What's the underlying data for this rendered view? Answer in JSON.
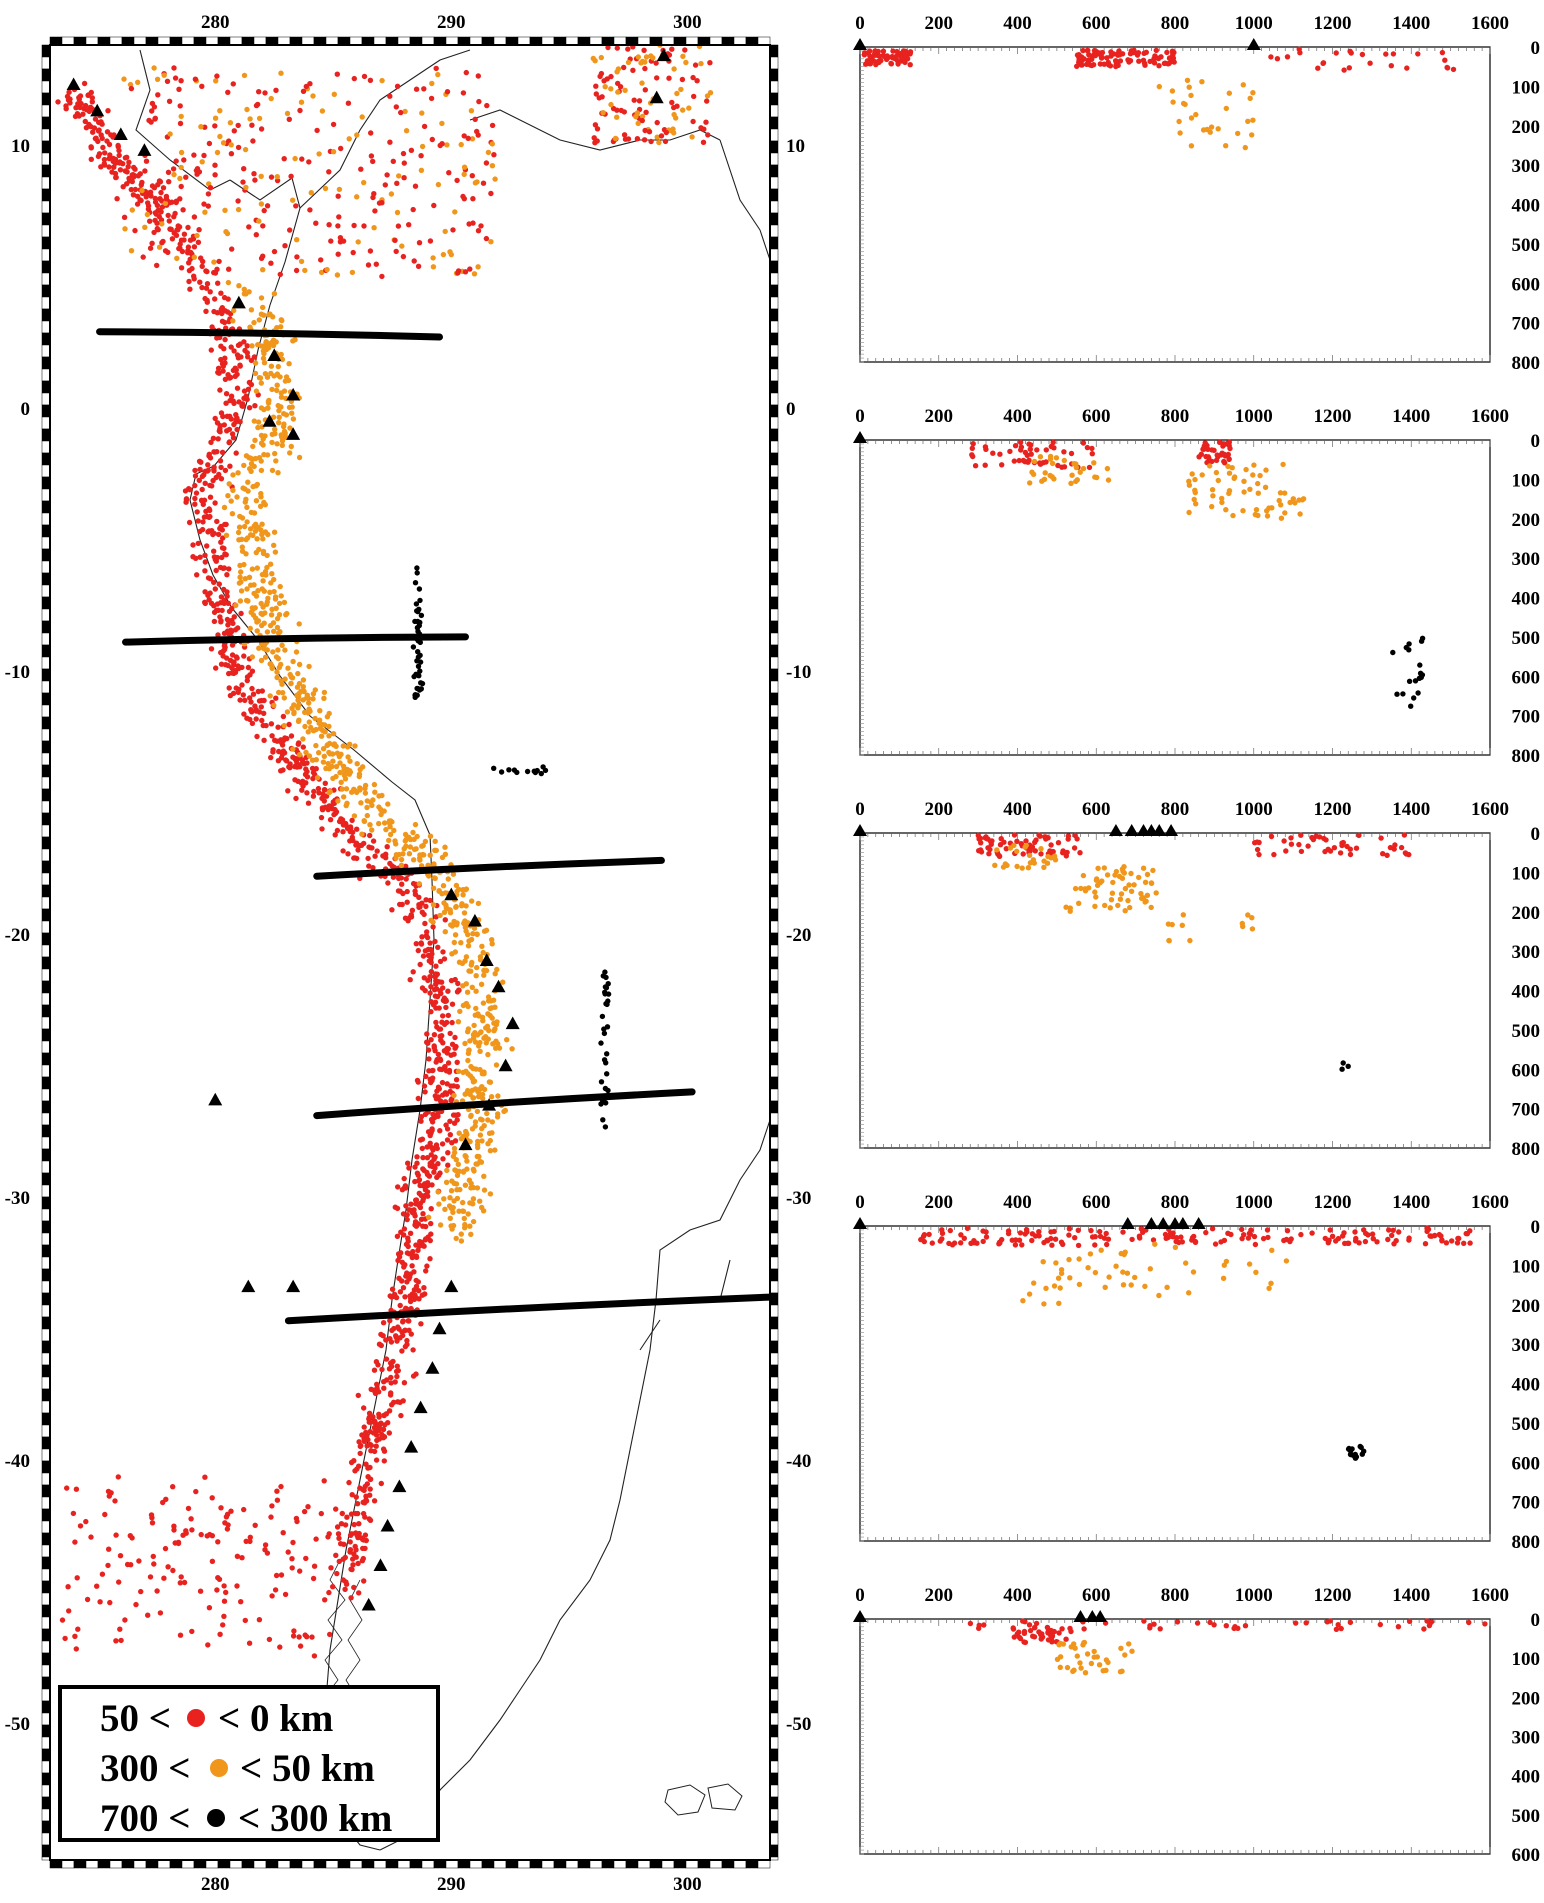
{
  "map": {
    "lon_ticks": [
      280,
      290,
      300
    ],
    "lat_ticks": [
      10,
      0,
      -10,
      -20,
      -30,
      -40,
      -50
    ],
    "lon_range": [
      273,
      303.5
    ],
    "lat_range": [
      13.8,
      -55.2
    ],
    "profile_lines": [
      {
        "lon": [
          275.1,
          289.5
        ],
        "lat": [
          2.9,
          2.7
        ]
      },
      {
        "lon": [
          276.2,
          290.6
        ],
        "lat": [
          -8.9,
          -8.7
        ]
      },
      {
        "lon": [
          284.3,
          298.9
        ],
        "lat": [
          -17.8,
          -17.2
        ]
      },
      {
        "lon": [
          284.3,
          300.2
        ],
        "lat": [
          -26.9,
          -26.0
        ]
      },
      {
        "lon": [
          283.1,
          303.5
        ],
        "lat": [
          -34.7,
          -33.8
        ]
      }
    ]
  },
  "legend": {
    "rows": [
      {
        "before": "50 <",
        "after": "< 0 km",
        "color": "#e8221f"
      },
      {
        "before": "300 <",
        "after": "< 50 km",
        "color": "#f0961b"
      },
      {
        "before": "700 <",
        "after": "< 300 km",
        "color": "#000000"
      }
    ]
  },
  "colors": {
    "shallow": "#e8221f",
    "intermediate": "#f0961b",
    "deep": "#000000",
    "volcano": "#000000"
  },
  "cross_sections": [
    {
      "distance_ticks": [
        "0",
        "200",
        "400",
        "600",
        "800",
        "1000",
        "1200",
        "1400",
        "1600"
      ],
      "depth_ticks": [
        "0",
        "100",
        "200",
        "300",
        "400",
        "500",
        "600",
        "700",
        "800"
      ],
      "depth_max": 800,
      "volcanoes_km": [
        0,
        1000
      ]
    },
    {
      "distance_ticks": [
        "0",
        "200",
        "400",
        "600",
        "800",
        "1000",
        "1200",
        "1400",
        "1600"
      ],
      "depth_ticks": [
        "0",
        "100",
        "200",
        "300",
        "400",
        "500",
        "600",
        "700",
        "800"
      ],
      "depth_max": 800,
      "volcanoes_km": [
        0
      ]
    },
    {
      "distance_ticks": [
        "0",
        "200",
        "400",
        "600",
        "800",
        "1000",
        "1200",
        "1400",
        "1600"
      ],
      "depth_ticks": [
        "0",
        "100",
        "200",
        "300",
        "400",
        "500",
        "600",
        "700",
        "800"
      ],
      "depth_max": 800,
      "volcanoes_km": [
        0,
        650,
        690,
        720,
        740,
        760,
        790
      ]
    },
    {
      "distance_ticks": [
        "0",
        "200",
        "400",
        "600",
        "800",
        "1000",
        "1200",
        "1400",
        "1600"
      ],
      "depth_ticks": [
        "0",
        "100",
        "200",
        "300",
        "400",
        "500",
        "600",
        "700",
        "800"
      ],
      "depth_max": 800,
      "volcanoes_km": [
        0,
        680,
        740,
        770,
        800,
        820,
        860
      ]
    },
    {
      "distance_ticks": [
        "0",
        "200",
        "400",
        "600",
        "800",
        "1000",
        "1200",
        "1400",
        "1600"
      ],
      "depth_ticks": [
        "0",
        "100",
        "200",
        "300",
        "400",
        "500",
        "600"
      ],
      "depth_max": 600,
      "volcanoes_km": [
        0,
        560,
        590,
        610
      ]
    }
  ]
}
